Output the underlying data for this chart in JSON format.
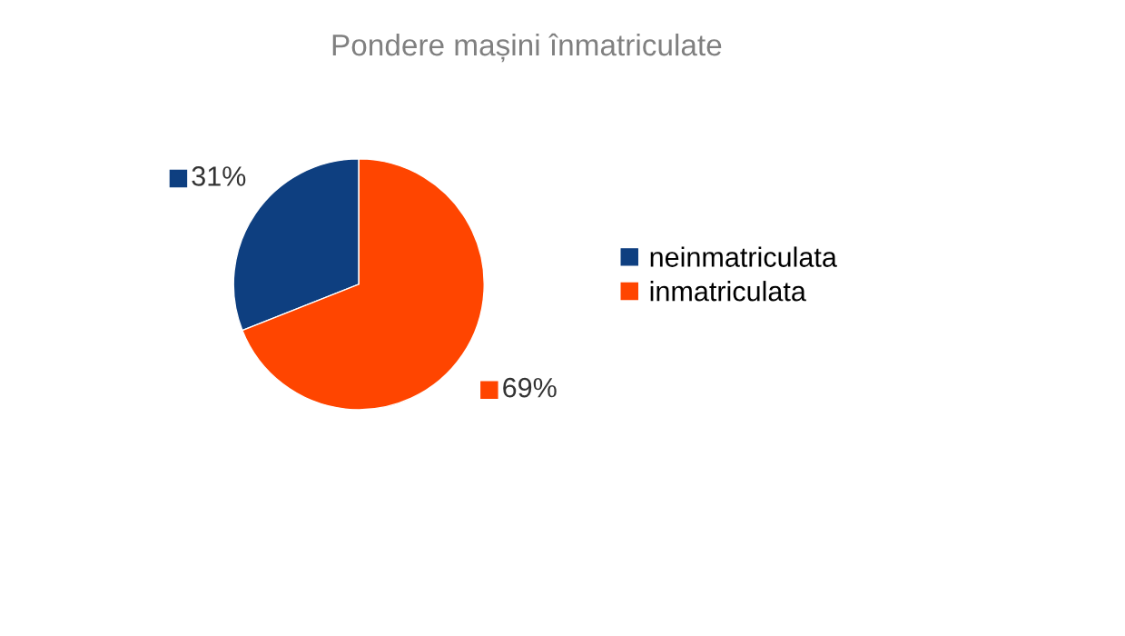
{
  "chart_data": {
    "type": "pie",
    "title": "Pondere mașini înmatriculate",
    "categories": [
      "neinmatriculata",
      "inmatriculata"
    ],
    "values": [
      31,
      69
    ],
    "colors": [
      "#0e3f80",
      "#ff4500"
    ],
    "value_labels": [
      "31%",
      "69%"
    ],
    "legend": "right"
  }
}
